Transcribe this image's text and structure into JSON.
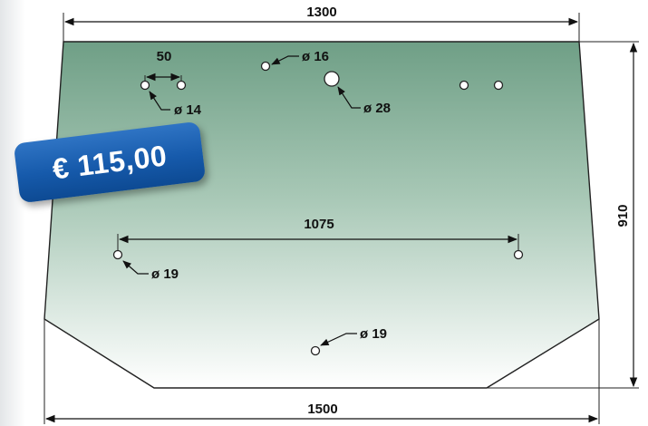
{
  "price": {
    "label": "€ 115,00"
  },
  "dimensions": {
    "top_width": "1300",
    "bottom_width": "1500",
    "height": "910",
    "hole_spacing_small": "50",
    "hole_spacing_large": "1075"
  },
  "holes": {
    "d14": "ø 14",
    "d16": "ø 16",
    "d28": "ø 28",
    "d19_left": "ø 19",
    "d19_bottom": "ø 19"
  },
  "colors": {
    "glass_top": "#6f9f86",
    "glass_bottom": "#ffffff",
    "badge": "#165aab",
    "line": "#111111"
  }
}
